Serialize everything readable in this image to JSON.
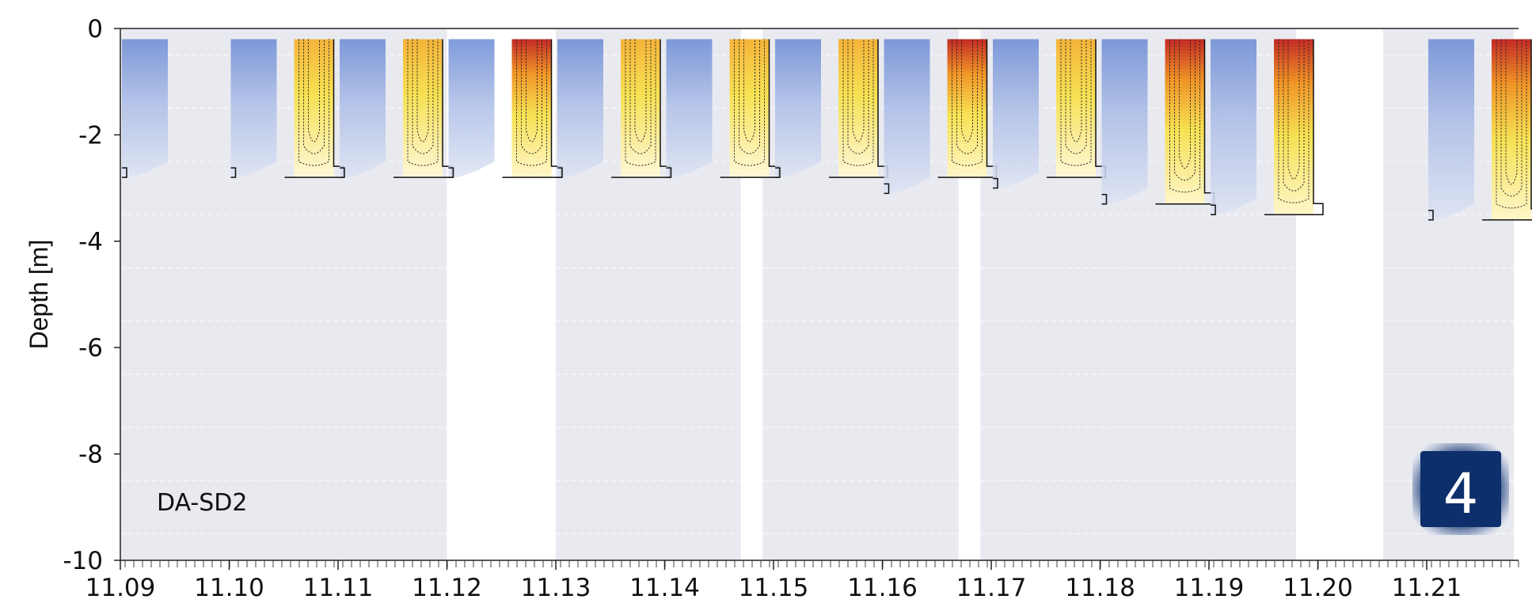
{
  "chart_data": {
    "type": "heatmap",
    "title": "",
    "xlabel": "",
    "ylabel": "Depth [m]",
    "ylim": [
      -10,
      0
    ],
    "y_ticks": [
      "0",
      "-2",
      "-4",
      "-6",
      "-8",
      "-10"
    ],
    "y_tick_values": [
      0,
      -2,
      -4,
      -6,
      -8,
      -10
    ],
    "x_ticks": [
      "11.09",
      "11.10",
      "11.11",
      "11.12",
      "11.13",
      "11.14",
      "11.15",
      "11.16",
      "11.17",
      "11.18",
      "11.19",
      "11.20",
      "11.21"
    ],
    "station_label": "DA-SD2",
    "panel_badge": "4",
    "grid": true,
    "colormap": [
      "#5b7fd0",
      "#c9d5f0",
      "#fff4b8",
      "#f7e04a",
      "#f0901c",
      "#c0201a"
    ],
    "background_no_data": "#e9eaf0",
    "data_segments": [
      {
        "start": "11.09",
        "end": "11.12"
      },
      {
        "start": "11.13",
        "end": "11.147"
      },
      {
        "start": "11.149",
        "end": "11.167"
      },
      {
        "start": "11.169",
        "end": "11.198"
      },
      {
        "start": "11.206",
        "end": "11.218"
      }
    ],
    "daily_profiles": [
      {
        "day": "11.09",
        "cool_bottom_depth": -2.8,
        "warm_bottom_depth": null,
        "intensity": 0.0
      },
      {
        "day": "11.10",
        "cool_bottom_depth": -2.8,
        "warm_bottom_depth": -2.8,
        "intensity": 0.4
      },
      {
        "day": "11.11",
        "cool_bottom_depth": -2.8,
        "warm_bottom_depth": -2.8,
        "intensity": 0.5
      },
      {
        "day": "11.12",
        "cool_bottom_depth": -2.8,
        "warm_bottom_depth": -2.8,
        "intensity": 0.85
      },
      {
        "day": "11.13",
        "cool_bottom_depth": -2.8,
        "warm_bottom_depth": -2.8,
        "intensity": 0.3
      },
      {
        "day": "11.14",
        "cool_bottom_depth": -2.8,
        "warm_bottom_depth": -2.8,
        "intensity": 0.5
      },
      {
        "day": "11.15",
        "cool_bottom_depth": -2.8,
        "warm_bottom_depth": -2.8,
        "intensity": 0.2
      },
      {
        "day": "11.16",
        "cool_bottom_depth": -3.1,
        "warm_bottom_depth": -2.8,
        "intensity": 0.8
      },
      {
        "day": "11.17",
        "cool_bottom_depth": -3.0,
        "warm_bottom_depth": -2.8,
        "intensity": 0.3
      },
      {
        "day": "11.18",
        "cool_bottom_depth": -3.3,
        "warm_bottom_depth": -3.3,
        "intensity": 0.8
      },
      {
        "day": "11.19",
        "cool_bottom_depth": -3.5,
        "warm_bottom_depth": -3.5,
        "intensity": 0.85
      },
      {
        "day": "11.20",
        "cool_bottom_depth": null,
        "warm_bottom_depth": null,
        "intensity": 0.0
      },
      {
        "day": "11.21",
        "cool_bottom_depth": -3.6,
        "warm_bottom_depth": -3.6,
        "intensity": 0.95
      }
    ]
  },
  "accent_colors": {
    "badge_fill": "#0d2f6b",
    "badge_glow": "#1c3d7e"
  }
}
